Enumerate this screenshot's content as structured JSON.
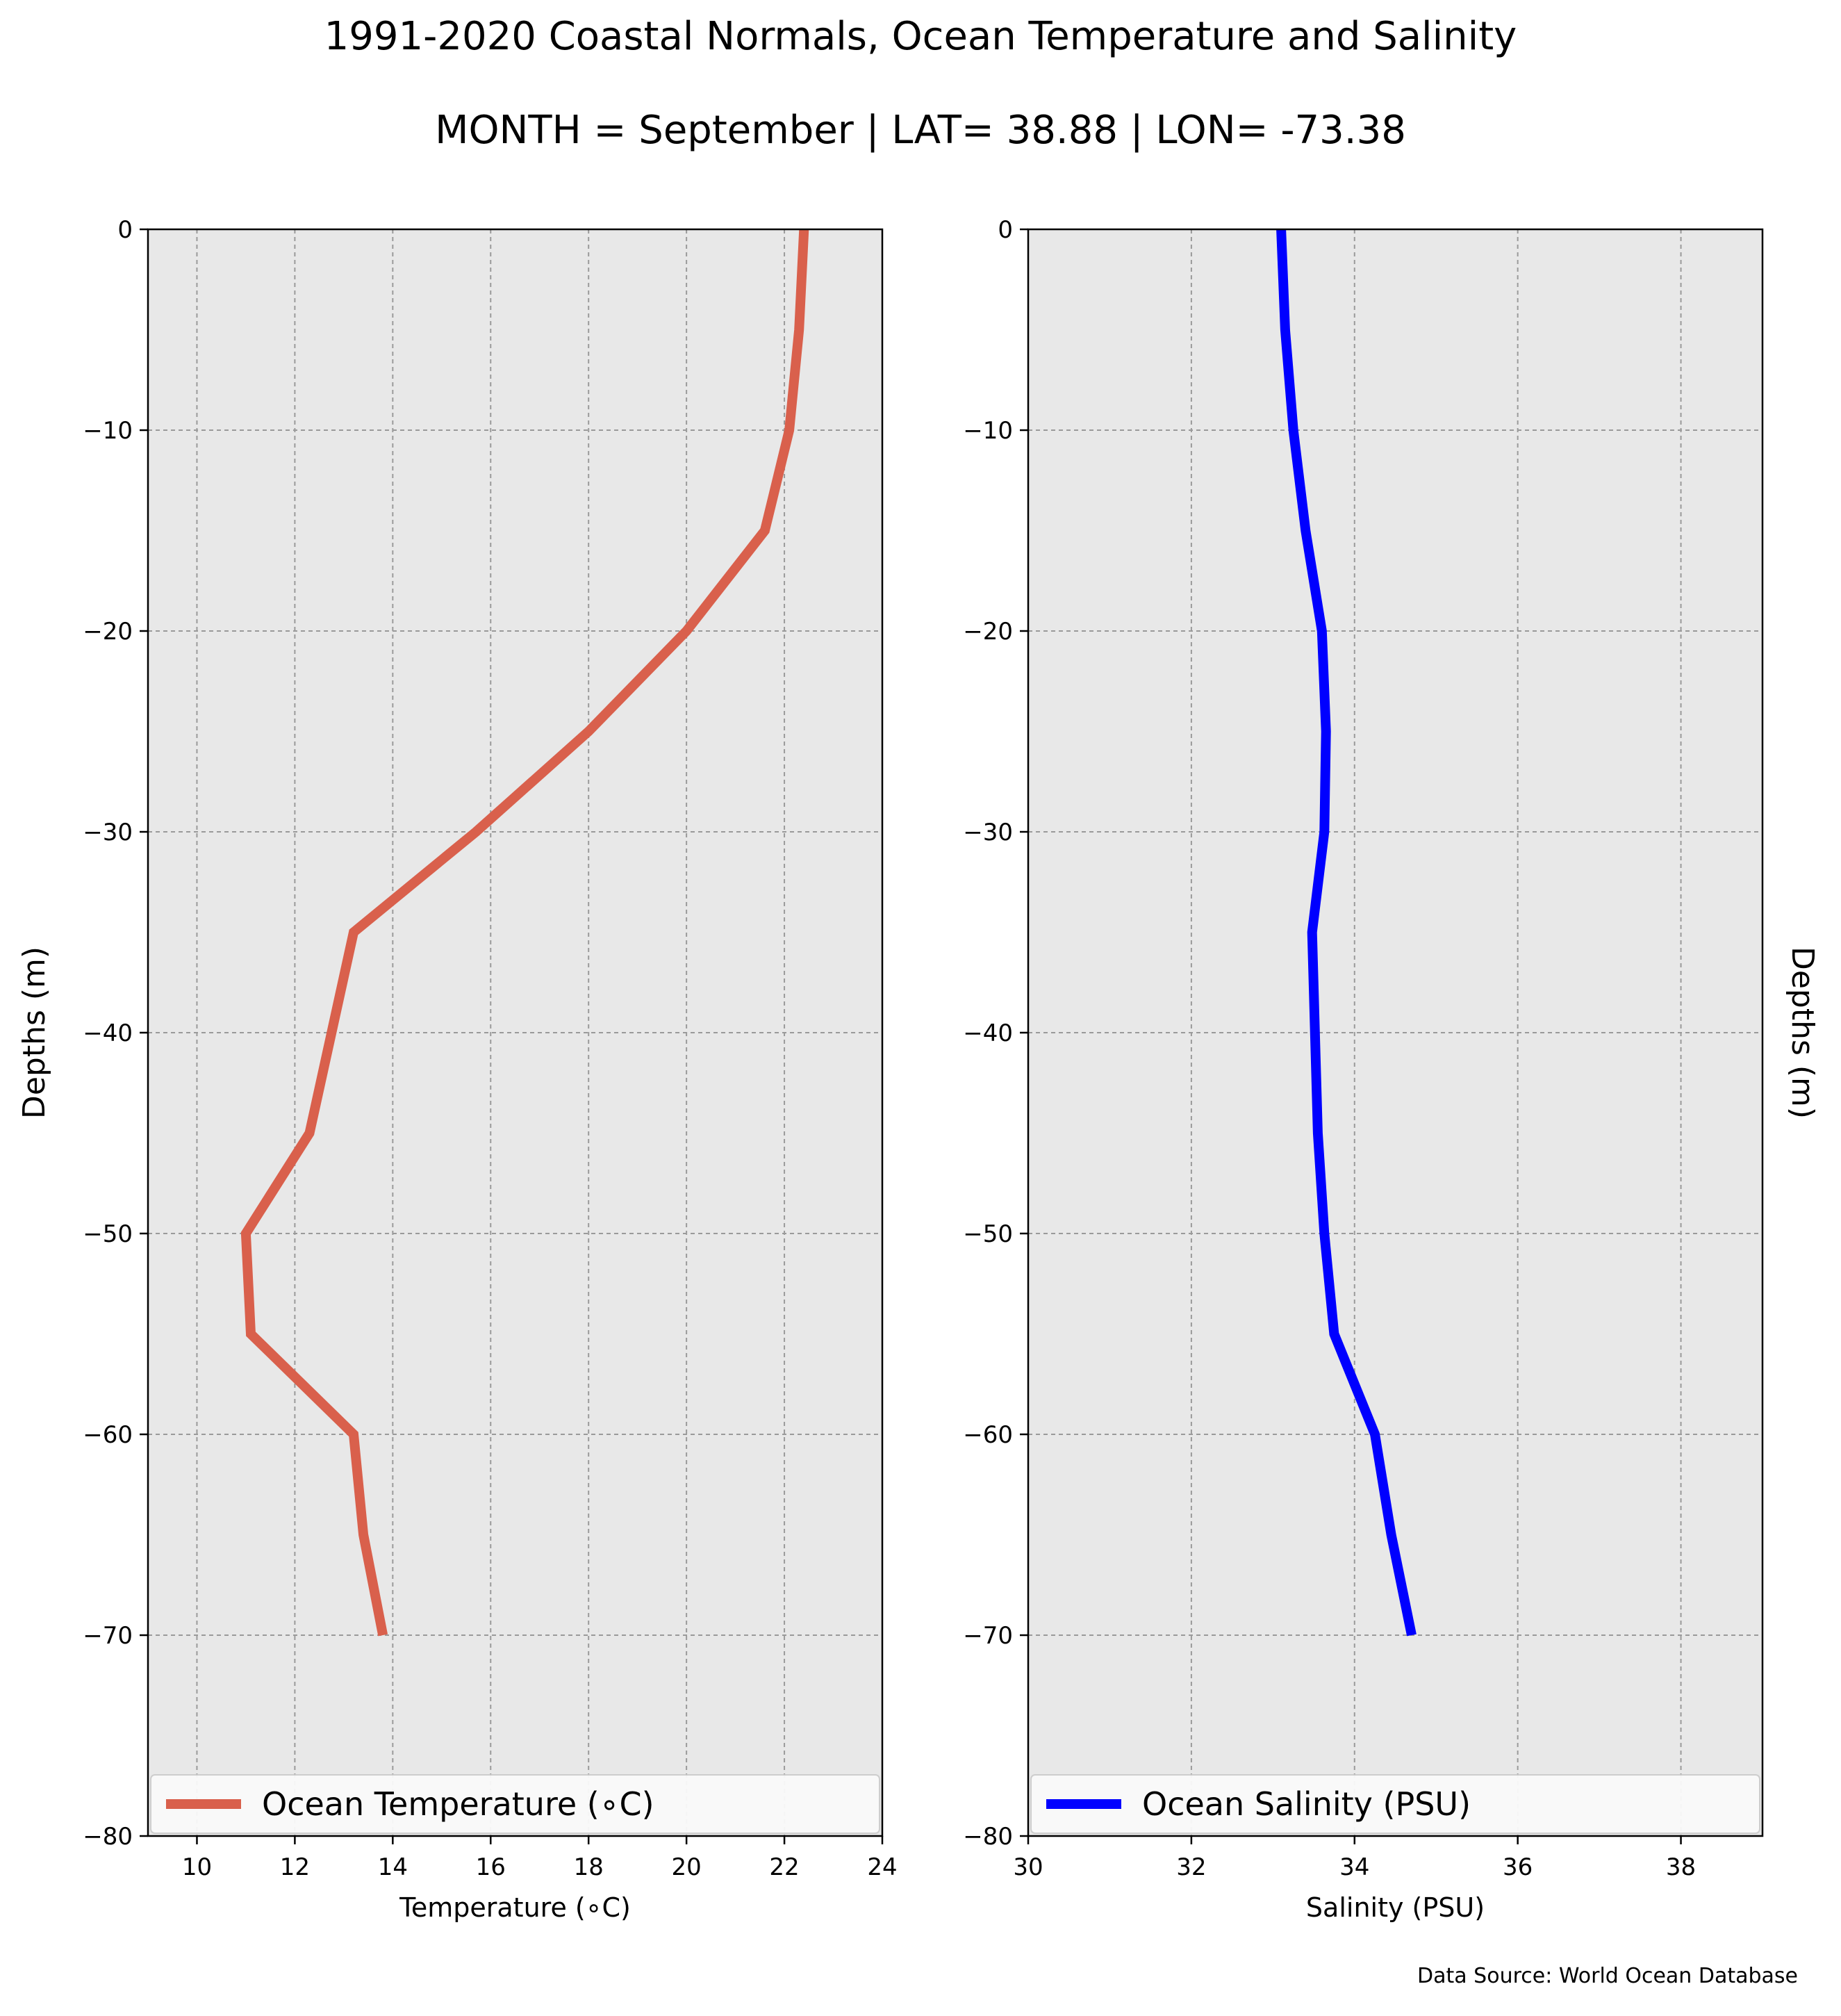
{
  "title": "1991-2020 Coastal Normals, Ocean Temperature and Salinity",
  "subtitle": "MONTH = September | LAT= 38.88 | LON= -73.38",
  "source": "Data Source: World Ocean Database",
  "chart_data": [
    {
      "type": "line",
      "xlabel": "Temperature (∘C)",
      "ylabel": "Depths (m)",
      "xlim": [
        9,
        24
      ],
      "ylim": [
        -80,
        0
      ],
      "xticks": [
        10,
        12,
        14,
        16,
        18,
        20,
        22,
        24
      ],
      "yticks": [
        0,
        -10,
        -20,
        -30,
        -40,
        -50,
        -60,
        -70,
        -80
      ],
      "grid": true,
      "legend_position": "bottom",
      "series": [
        {
          "name": "Ocean Temperature (∘C)",
          "color": "#d9604c",
          "x": [
            22.4,
            22.3,
            22.1,
            21.6,
            20.0,
            18.0,
            15.7,
            13.2,
            12.3,
            11.0,
            11.1,
            13.2,
            13.4,
            13.8
          ],
          "y": [
            0,
            -5,
            -10,
            -15,
            -20,
            -25,
            -30,
            -35,
            -45,
            -50,
            -55,
            -60,
            -65,
            -70
          ]
        }
      ]
    },
    {
      "type": "line",
      "xlabel": "Salinity (PSU)",
      "ylabel": "Depths (m)",
      "xlim": [
        30,
        39
      ],
      "ylim": [
        -80,
        0
      ],
      "xticks": [
        30,
        32,
        34,
        36,
        38
      ],
      "yticks": [
        0,
        -10,
        -20,
        -30,
        -40,
        -50,
        -60,
        -70,
        -80
      ],
      "grid": true,
      "legend_position": "bottom",
      "series": [
        {
          "name": "Ocean Salinity (PSU)",
          "color": "#0000ff",
          "x": [
            33.1,
            33.15,
            33.25,
            33.4,
            33.6,
            33.65,
            33.63,
            33.48,
            33.55,
            33.63,
            33.75,
            34.25,
            34.45,
            34.7
          ],
          "y": [
            0,
            -5,
            -10,
            -15,
            -20,
            -25,
            -30,
            -35,
            -45,
            -50,
            -55,
            -60,
            -65,
            -70
          ]
        }
      ]
    }
  ]
}
